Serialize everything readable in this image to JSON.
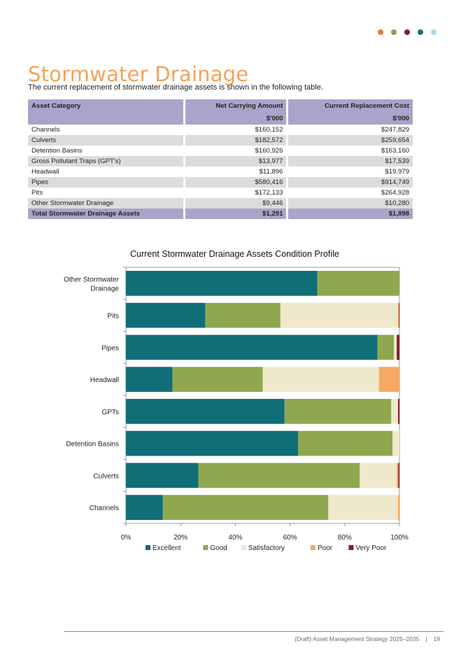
{
  "header": {
    "dots": [
      "#e07b39",
      "#8ca04e",
      "#7b2430",
      "#17707a",
      "#a8d8e8"
    ]
  },
  "page": {
    "title": "Stormwater Drainage",
    "intro": "The current replacement of stormwater drainage assets is shown in the following table."
  },
  "table": {
    "headers": [
      "Asset Category",
      "Net Carrying Amount",
      "Current Replacement Cost"
    ],
    "units": [
      "",
      "$'000",
      "$'000"
    ],
    "rows": [
      [
        "Channels",
        "$160,152",
        "$247,829"
      ],
      [
        "Culverts",
        "$182,572",
        "$259,654"
      ],
      [
        "Detention Basins",
        "$160,926",
        "$163,160"
      ],
      [
        "Gross Pollutant Traps (GPT's)",
        "$13,977",
        "$17,539"
      ],
      [
        "Headwall",
        "$11,896",
        "$19,979"
      ],
      [
        "Pipes",
        "$580,416",
        "$914,749"
      ],
      [
        "Pits",
        "$172,133",
        "$264,928"
      ],
      [
        "Other Stormwater Drainage",
        "$9,446",
        "$10,280"
      ]
    ],
    "total": [
      "Total Stormwater Drainage Assets",
      "$1,291",
      "$1,898"
    ]
  },
  "chart_data": {
    "type": "bar",
    "orientation": "horizontal-stacked-100",
    "title": "Current Stormwater Drainage Assets Condition Profile",
    "categories": [
      "Other Stormwater Drainage",
      "Pits",
      "Pipes",
      "Headwall",
      "GPTs",
      "Detention Basins",
      "Culverts",
      "Channels"
    ],
    "x_ticks": [
      "0%",
      "20%",
      "40%",
      "60%",
      "80%",
      "100%"
    ],
    "xlim": [
      0,
      100
    ],
    "legend_position": "bottom",
    "series": [
      {
        "name": "Excellent",
        "color": "#0f6e78",
        "values": [
          70,
          29,
          92,
          17,
          58,
          63,
          26.5,
          13.5
        ]
      },
      {
        "name": "Good",
        "color": "#8fa84f",
        "values": [
          30,
          27.5,
          6,
          33,
          39,
          34.5,
          59,
          60.5
        ]
      },
      {
        "name": "Satisfactory",
        "color": "#efe8cc",
        "values": [
          0,
          43,
          1,
          42.5,
          2.5,
          2.5,
          13.5,
          25.5
        ]
      },
      {
        "name": "Poor",
        "color": "#f5a963",
        "values": [
          0,
          0.3,
          0,
          7.5,
          0,
          0,
          0.6,
          0.5
        ]
      },
      {
        "name": "Very Poor",
        "color": "#7b2430",
        "values": [
          0,
          0.2,
          1,
          0,
          0.5,
          0,
          0.4,
          0
        ]
      }
    ]
  },
  "footer": {
    "text": "(Draft) Asset Management Strategy 2025–2035",
    "separator": "|",
    "page_number": "19"
  }
}
